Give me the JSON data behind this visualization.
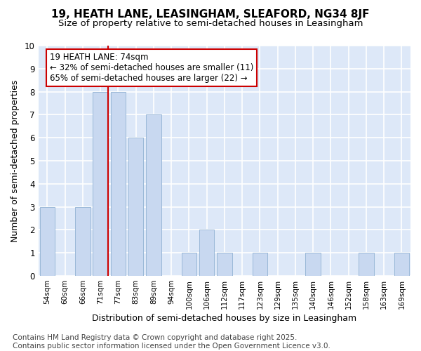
{
  "title": "19, HEATH LANE, LEASINGHAM, SLEAFORD, NG34 8JF",
  "subtitle": "Size of property relative to semi-detached houses in Leasingham",
  "xlabel": "Distribution of semi-detached houses by size in Leasingham",
  "ylabel": "Number of semi-detached properties",
  "categories": [
    "54sqm",
    "60sqm",
    "66sqm",
    "71sqm",
    "77sqm",
    "83sqm",
    "89sqm",
    "94sqm",
    "100sqm",
    "106sqm",
    "112sqm",
    "117sqm",
    "123sqm",
    "129sqm",
    "135sqm",
    "140sqm",
    "146sqm",
    "152sqm",
    "158sqm",
    "163sqm",
    "169sqm"
  ],
  "values": [
    3,
    0,
    3,
    8,
    8,
    6,
    7,
    0,
    1,
    2,
    1,
    0,
    1,
    0,
    0,
    1,
    0,
    0,
    1,
    0,
    1
  ],
  "bar_color": "#c8d8f0",
  "bar_edge_color": "#9ab8d8",
  "vline_x_index": 3,
  "vline_color": "#cc0000",
  "annotation_text": "19 HEATH LANE: 74sqm\n← 32% of semi-detached houses are smaller (11)\n65% of semi-detached houses are larger (22) →",
  "annotation_box_color": "#ffffff",
  "annotation_box_edge_color": "#cc0000",
  "ylim": [
    0,
    10
  ],
  "yticks": [
    0,
    1,
    2,
    3,
    4,
    5,
    6,
    7,
    8,
    9,
    10
  ],
  "fig_bg_color": "#ffffff",
  "plot_bg_color": "#dde8f8",
  "grid_color": "#ffffff",
  "footer": "Contains HM Land Registry data © Crown copyright and database right 2025.\nContains public sector information licensed under the Open Government Licence v3.0.",
  "title_fontsize": 11,
  "subtitle_fontsize": 9.5,
  "xlabel_fontsize": 9,
  "ylabel_fontsize": 9,
  "annotation_fontsize": 8.5,
  "footer_fontsize": 7.5
}
